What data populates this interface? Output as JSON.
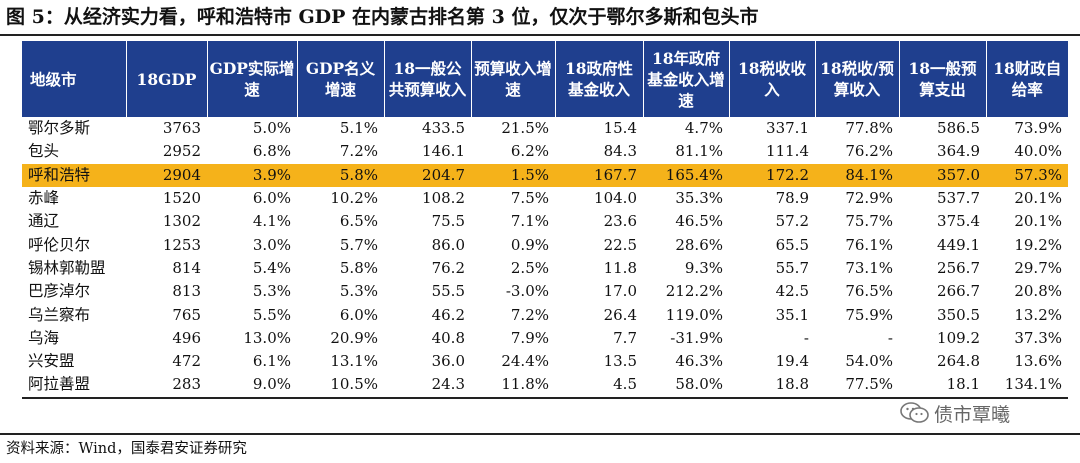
{
  "figure": {
    "title": "图 5：从经济实力看，呼和浩特市 GDP 在内蒙古排名第 3 位，仅次于鄂尔多斯和包头市",
    "source": "资料来源：Wind，国泰君安证券研究",
    "watermark": "债市覃曦"
  },
  "table": {
    "headers": [
      "地级市",
      "18GDP",
      "GDP实际增速",
      "GDP名义增速",
      "18一般公共预算收入",
      "预算收入增速",
      "18政府性基金收入",
      "18年政府基金收入增速",
      "18税收收入",
      "18税收/预算收入",
      "18一般预算支出",
      "18财政自给率"
    ],
    "highlight_row": 2,
    "highlight_color": "#f5b21a",
    "header_color": "#1f3f8e",
    "rows": [
      [
        "鄂尔多斯",
        "3763",
        "5.0%",
        "5.1%",
        "433.5",
        "21.5%",
        "15.4",
        "4.7%",
        "337.1",
        "77.8%",
        "586.5",
        "73.9%"
      ],
      [
        "包头",
        "2952",
        "6.8%",
        "7.2%",
        "146.1",
        "6.2%",
        "84.3",
        "81.1%",
        "111.4",
        "76.2%",
        "364.9",
        "40.0%"
      ],
      [
        "呼和浩特",
        "2904",
        "3.9%",
        "5.8%",
        "204.7",
        "1.5%",
        "167.7",
        "165.4%",
        "172.2",
        "84.1%",
        "357.0",
        "57.3%"
      ],
      [
        "赤峰",
        "1520",
        "6.0%",
        "10.2%",
        "108.2",
        "7.5%",
        "104.0",
        "35.3%",
        "78.9",
        "72.9%",
        "537.7",
        "20.1%"
      ],
      [
        "通辽",
        "1302",
        "4.1%",
        "6.5%",
        "75.5",
        "7.1%",
        "23.6",
        "46.5%",
        "57.2",
        "75.7%",
        "375.4",
        "20.1%"
      ],
      [
        "呼伦贝尔",
        "1253",
        "3.0%",
        "5.7%",
        "86.0",
        "0.9%",
        "22.5",
        "28.6%",
        "65.5",
        "76.1%",
        "449.1",
        "19.2%"
      ],
      [
        "锡林郭勒盟",
        "814",
        "5.4%",
        "5.8%",
        "76.2",
        "2.5%",
        "11.8",
        "9.3%",
        "55.7",
        "73.1%",
        "256.7",
        "29.7%"
      ],
      [
        "巴彦淖尔",
        "813",
        "5.3%",
        "5.3%",
        "55.5",
        "-3.0%",
        "17.0",
        "212.2%",
        "42.5",
        "76.5%",
        "266.7",
        "20.8%"
      ],
      [
        "乌兰察布",
        "765",
        "5.5%",
        "6.0%",
        "46.2",
        "7.2%",
        "26.4",
        "119.0%",
        "35.1",
        "75.9%",
        "350.5",
        "13.2%"
      ],
      [
        "乌海",
        "496",
        "13.0%",
        "20.9%",
        "40.8",
        "7.9%",
        "7.7",
        "-31.9%",
        "-",
        "-",
        "109.2",
        "37.3%"
      ],
      [
        "兴安盟",
        "472",
        "6.1%",
        "13.1%",
        "36.0",
        "24.4%",
        "13.5",
        "46.3%",
        "19.4",
        "54.0%",
        "264.8",
        "13.6%"
      ],
      [
        "阿拉善盟",
        "283",
        "9.0%",
        "10.5%",
        "24.3",
        "11.8%",
        "4.5",
        "58.0%",
        "18.8",
        "77.5%",
        "18.1",
        "134.1%"
      ]
    ]
  }
}
